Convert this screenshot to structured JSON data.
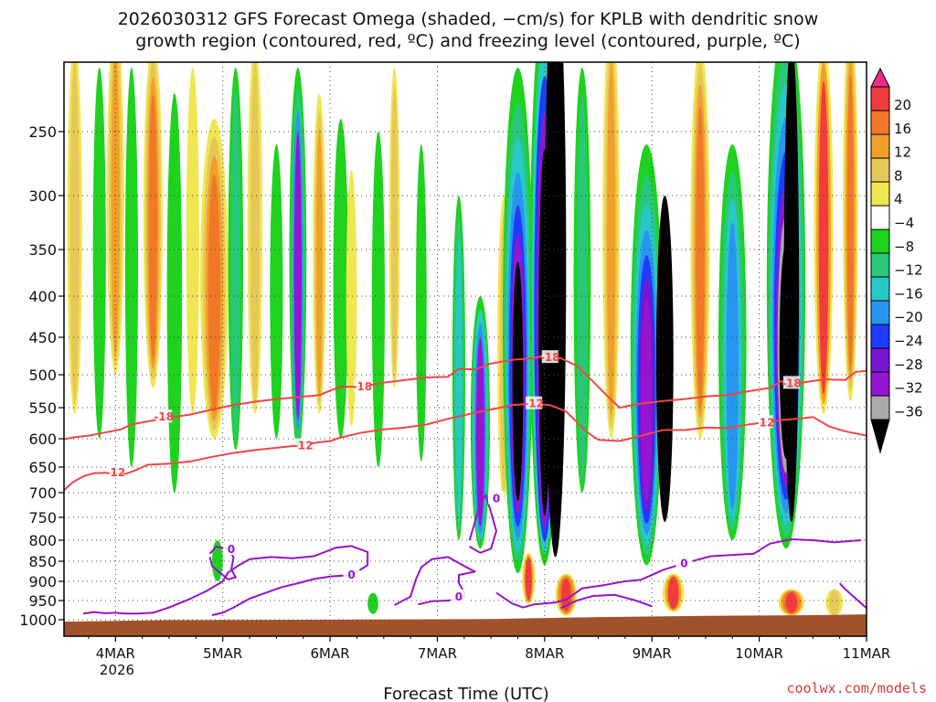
{
  "chart_data": {
    "type": "heatmap",
    "title_line1": "2026030312 GFS Forecast Omega (shaded, −cm/s) for KPLB with dendritic snow",
    "title_line2": "growth region (contoured, red, ºC) and freezing level (contoured, purple, ºC)",
    "xlabel": "Forecast Time (UTC)",
    "credit": "coolwx.com/models",
    "y_ticks": [
      "250",
      "300",
      "350",
      "400",
      "450",
      "500",
      "550",
      "600",
      "650",
      "700",
      "750",
      "800",
      "850",
      "900",
      "950",
      "1000"
    ],
    "y_tick_values": [
      250,
      300,
      350,
      400,
      450,
      500,
      550,
      600,
      650,
      700,
      750,
      800,
      850,
      900,
      950,
      1000
    ],
    "x_ticks": [
      "4MAR",
      "5MAR",
      "6MAR",
      "7MAR",
      "8MAR",
      "9MAR",
      "10MAR",
      "11MAR"
    ],
    "x_tick_values": [
      1,
      2,
      3,
      4,
      5,
      6,
      7,
      8
    ],
    "x_year_label": "2026",
    "x_range": [
      0.52,
      8.0
    ],
    "colorbar": {
      "labels": [
        "20",
        "16",
        "12",
        "8",
        "4",
        "−4",
        "−8",
        "−12",
        "−16",
        "−20",
        "−24",
        "−28",
        "−32",
        "−36"
      ],
      "colors": [
        "#f0288c",
        "#f03c3c",
        "#f07828",
        "#f0a028",
        "#e6c85a",
        "#f0e650",
        "#ffffff",
        "#1ed21e",
        "#28c878",
        "#28c8c8",
        "#2896f0",
        "#1e3cff",
        "#7814d2",
        "#9614d2",
        "#aaaaaa",
        "#000000"
      ]
    },
    "contours": {
      "dgz_color": "#f04646",
      "dgz_minus18_label": "-18",
      "dgz_minus12_label": "-12",
      "freezing_color": "#9614c8",
      "freezing_label": "0",
      "dgz_minus18": [
        [
          0.52,
          601
        ],
        [
          0.6,
          598
        ],
        [
          0.75,
          595
        ],
        [
          0.9,
          590
        ],
        [
          1.05,
          585
        ],
        [
          1.15,
          577
        ],
        [
          1.3,
          572
        ],
        [
          1.5,
          566
        ],
        [
          1.7,
          561
        ],
        [
          1.9,
          553
        ],
        [
          2.1,
          546
        ],
        [
          2.3,
          541
        ],
        [
          2.5,
          537
        ],
        [
          2.7,
          534
        ],
        [
          2.9,
          531
        ],
        [
          3.0,
          524
        ],
        [
          3.1,
          518
        ],
        [
          3.3,
          518
        ],
        [
          3.5,
          512
        ],
        [
          3.7,
          508
        ],
        [
          3.9,
          504
        ],
        [
          4.1,
          503
        ],
        [
          4.2,
          492
        ],
        [
          4.35,
          493
        ],
        [
          4.5,
          485
        ],
        [
          4.7,
          480
        ],
        [
          4.9,
          478
        ],
        [
          5.0,
          474
        ],
        [
          5.15,
          478
        ],
        [
          5.3,
          488
        ],
        [
          5.45,
          510
        ],
        [
          5.6,
          535
        ],
        [
          5.7,
          550
        ],
        [
          5.85,
          545
        ],
        [
          6.1,
          540
        ],
        [
          6.3,
          537
        ],
        [
          6.5,
          533
        ],
        [
          6.7,
          531
        ],
        [
          6.9,
          525
        ],
        [
          7.1,
          520
        ],
        [
          7.2,
          510
        ],
        [
          7.4,
          512
        ],
        [
          7.6,
          507
        ],
        [
          7.8,
          508
        ],
        [
          7.9,
          496
        ],
        [
          8.0,
          495
        ]
      ],
      "dgz_minus12": [
        [
          0.52,
          695
        ],
        [
          0.6,
          680
        ],
        [
          0.7,
          668
        ],
        [
          0.8,
          662
        ],
        [
          0.9,
          661
        ],
        [
          1.0,
          661
        ],
        [
          1.1,
          663
        ],
        [
          1.2,
          655
        ],
        [
          1.3,
          646
        ],
        [
          1.5,
          644
        ],
        [
          1.7,
          640
        ],
        [
          1.9,
          632
        ],
        [
          2.1,
          625
        ],
        [
          2.3,
          620
        ],
        [
          2.5,
          616
        ],
        [
          2.7,
          612
        ],
        [
          2.9,
          606
        ],
        [
          3.0,
          604
        ],
        [
          3.1,
          598
        ],
        [
          3.3,
          590
        ],
        [
          3.5,
          585
        ],
        [
          3.7,
          582
        ],
        [
          3.9,
          577
        ],
        [
          4.1,
          568
        ],
        [
          4.3,
          560
        ],
        [
          4.5,
          553
        ],
        [
          4.7,
          546
        ],
        [
          4.9,
          544
        ],
        [
          5.05,
          546
        ],
        [
          5.2,
          556
        ],
        [
          5.4,
          590
        ],
        [
          5.5,
          602
        ],
        [
          5.7,
          604
        ],
        [
          5.9,
          595
        ],
        [
          6.1,
          586
        ],
        [
          6.3,
          586
        ],
        [
          6.5,
          582
        ],
        [
          6.7,
          583
        ],
        [
          6.9,
          577
        ],
        [
          7.0,
          575
        ],
        [
          7.2,
          570
        ],
        [
          7.4,
          567
        ],
        [
          7.5,
          565
        ],
        [
          7.65,
          580
        ],
        [
          7.8,
          588
        ],
        [
          8.0,
          595
        ]
      ],
      "frz_left": [
        [
          0.7,
          984
        ],
        [
          0.8,
          980
        ],
        [
          0.9,
          983
        ],
        [
          1.0,
          982
        ],
        [
          1.1,
          984
        ],
        [
          1.2,
          984
        ],
        [
          1.35,
          982
        ],
        [
          1.5,
          968
        ],
        [
          1.7,
          945
        ],
        [
          1.85,
          925
        ],
        [
          2.0,
          900
        ],
        [
          2.05,
          878
        ],
        [
          2.15,
          860
        ],
        [
          2.25,
          845
        ],
        [
          2.45,
          840
        ],
        [
          2.65,
          843
        ],
        [
          2.85,
          838
        ],
        [
          2.95,
          828
        ],
        [
          3.05,
          818
        ],
        [
          3.2,
          814
        ],
        [
          3.35,
          828
        ],
        [
          3.35,
          860
        ],
        [
          3.2,
          884
        ],
        [
          3.0,
          888
        ],
        [
          2.85,
          894
        ],
        [
          2.7,
          905
        ],
        [
          2.55,
          915
        ],
        [
          2.4,
          930
        ],
        [
          2.25,
          945
        ],
        [
          2.1,
          968
        ],
        [
          2.0,
          982
        ],
        [
          1.9,
          988
        ]
      ],
      "frz_loop1": [
        [
          1.88,
          832
        ],
        [
          1.94,
          815
        ],
        [
          2.05,
          822
        ],
        [
          2.1,
          840
        ],
        [
          2.08,
          870
        ],
        [
          2.12,
          890
        ],
        [
          2.05,
          895
        ],
        [
          1.98,
          880
        ],
        [
          1.9,
          862
        ],
        [
          1.88,
          840
        ]
      ],
      "frz_mid": [
        [
          3.6,
          962
        ],
        [
          3.75,
          940
        ],
        [
          3.8,
          895
        ],
        [
          3.85,
          865
        ],
        [
          3.95,
          845
        ],
        [
          4.1,
          840
        ],
        [
          4.25,
          862
        ],
        [
          4.35,
          876
        ],
        [
          4.2,
          884
        ],
        [
          4.2,
          904
        ],
        [
          4.25,
          928
        ],
        [
          4.25,
          944
        ],
        [
          4.1,
          950
        ],
        [
          3.95,
          952
        ],
        [
          3.82,
          960
        ]
      ],
      "frz_right": [
        [
          4.55,
          930
        ],
        [
          4.7,
          958
        ],
        [
          4.8,
          968
        ],
        [
          4.9,
          960
        ],
        [
          5.1,
          955
        ],
        [
          5.2,
          948
        ],
        [
          5.35,
          918
        ],
        [
          5.55,
          910
        ],
        [
          5.75,
          900
        ],
        [
          5.9,
          896
        ],
        [
          6.1,
          872
        ],
        [
          6.3,
          855
        ],
        [
          6.55,
          838
        ],
        [
          6.75,
          835
        ],
        [
          6.95,
          832
        ],
        [
          7.1,
          808
        ],
        [
          7.3,
          798
        ],
        [
          7.5,
          800
        ],
        [
          7.7,
          805
        ],
        [
          7.95,
          800
        ]
      ],
      "frz_right_branch": [
        [
          5.15,
          970
        ],
        [
          5.3,
          950
        ],
        [
          5.45,
          938
        ],
        [
          5.65,
          935
        ],
        [
          5.85,
          950
        ],
        [
          6.0,
          965
        ]
      ],
      "frz_loop2": [
        [
          4.3,
          800
        ],
        [
          4.35,
          760
        ],
        [
          4.4,
          720
        ],
        [
          4.45,
          705
        ],
        [
          4.5,
          740
        ],
        [
          4.55,
          780
        ],
        [
          4.5,
          820
        ],
        [
          4.4,
          830
        ],
        [
          4.3,
          815
        ]
      ],
      "frz_end": [
        [
          7.75,
          905
        ],
        [
          7.8,
          920
        ],
        [
          7.9,
          945
        ],
        [
          8.0,
          970
        ]
      ]
    }
  }
}
